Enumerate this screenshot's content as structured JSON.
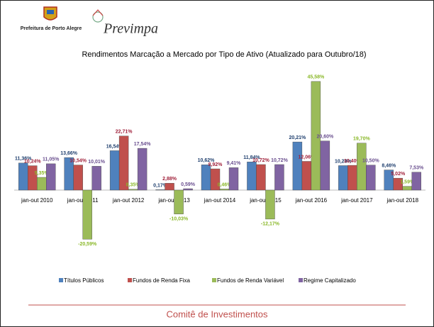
{
  "header": {
    "org": "Prefeitura de Porto Alegre",
    "brand": "Previmpa"
  },
  "chart_data": {
    "type": "bar",
    "title": "Rendimentos Marcação a Mercado por Tipo de Ativo (Atualizado para Outubro/18)",
    "categories": [
      "jan-out 2010",
      "jan-out 2011",
      "jan-out 2012",
      "jan-out 2013",
      "jan-out 2014",
      "jan-out 2015",
      "jan-out 2016",
      "jan-out 2017",
      "jan-out 2018"
    ],
    "series": [
      {
        "name": "Títulos Públicos",
        "color": "#4f81bd",
        "label_color": "#1f3f6e",
        "values": [
          11.36,
          13.66,
          16.54,
          0.17,
          10.62,
          11.84,
          20.21,
          10.28,
          8.46
        ],
        "value_labels": [
          "11,36%",
          "13,66%",
          "16,54%",
          "0,17%",
          "10,62%",
          "11,84%",
          "20,21%",
          "10,28%",
          "8,46%"
        ]
      },
      {
        "name": "Fundos de Renda Fixa",
        "color": "#c0504d",
        "label_color": "#a0203a",
        "values": [
          10.24,
          10.54,
          22.71,
          2.88,
          8.92,
          10.72,
          12.06,
          10.4,
          5.02
        ],
        "value_labels": [
          "10,24%",
          "10,54%",
          "22,71%",
          "2,88%",
          "8,92%",
          "10,72%",
          "12,06%",
          "10,40%",
          "5,02%"
        ]
      },
      {
        "name": "Fundos de Renda Variável",
        "color": "#9bbb59",
        "label_color": "#8ab828",
        "values": [
          5.35,
          -20.59,
          0.35,
          -10.03,
          0.46,
          -12.17,
          45.58,
          19.7,
          1.59
        ],
        "value_labels": [
          "5,35%",
          "-20,59%",
          "0,35%",
          "-10,03%",
          "0,46%",
          "-12,17%",
          "45,58%",
          "19,70%",
          "1,59%"
        ]
      },
      {
        "name": "Regime Capitalizado",
        "color": "#8064a2",
        "label_color": "#6a4f8f",
        "values": [
          11.05,
          10.01,
          17.54,
          0.59,
          9.41,
          10.72,
          20.6,
          10.5,
          7.53
        ],
        "value_labels": [
          "11,05%",
          "10,01%",
          "17,54%",
          "0,59%",
          "9,41%",
          "10,72%",
          "20,60%",
          "10,50%",
          "7,53%"
        ]
      }
    ]
  },
  "footer": {
    "text": "Comitê de Investimentos"
  }
}
